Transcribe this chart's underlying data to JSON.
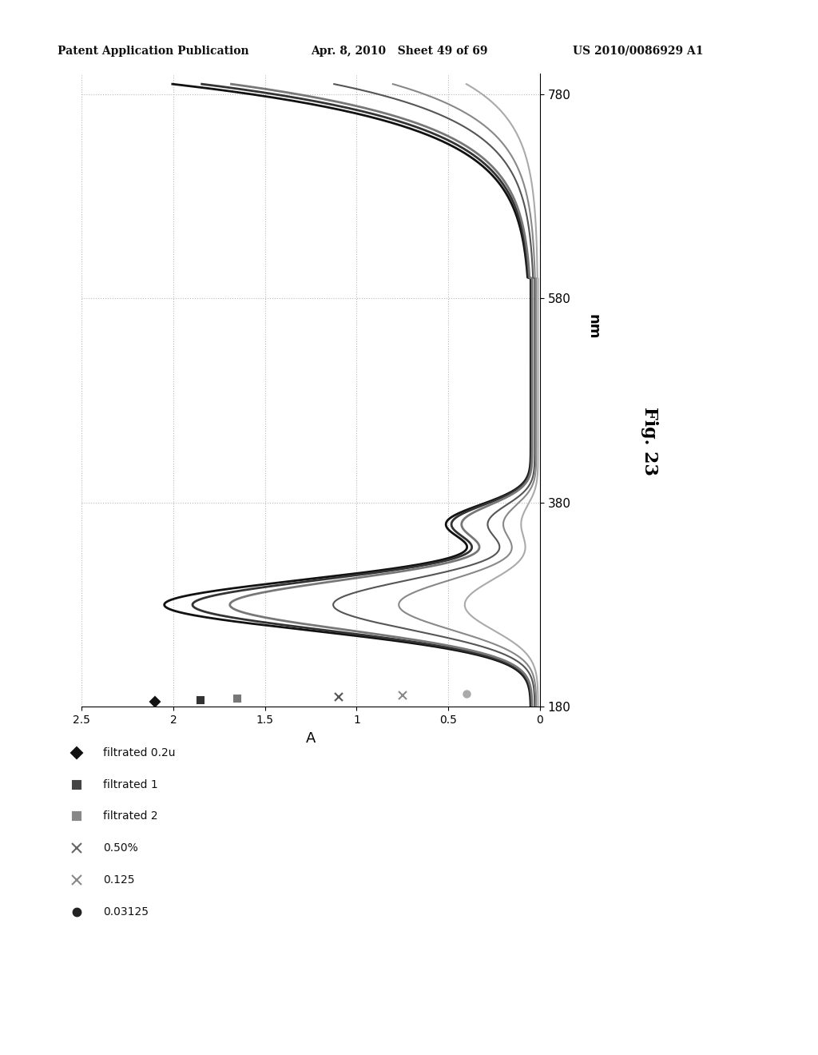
{
  "header_left": "Patent Application Publication",
  "header_mid": "Apr. 8, 2010   Sheet 49 of 69",
  "header_right": "US 2010/0086929 A1",
  "fig_label": "Fig. 23",
  "nm_label": "nm",
  "a_label": "A",
  "x_ticks": [
    0,
    0.5,
    1.0,
    1.5,
    2.0,
    2.5
  ],
  "x_tick_labels": [
    "0",
    "0.5",
    "1",
    "1.5",
    "2",
    "2.5"
  ],
  "y_ticks": [
    180,
    380,
    580,
    780
  ],
  "y_tick_labels": [
    "180",
    "380",
    "580",
    "780"
  ],
  "xlim": [
    2.5,
    0
  ],
  "ylim": [
    180,
    800
  ],
  "legend_entries": [
    "filtrated 0.2u",
    "filtrated 1",
    "filtrated 2",
    "0.50%",
    "0.125",
    "0.03125"
  ],
  "legend_markers": [
    "D",
    "s",
    "s",
    "x",
    "x",
    "o"
  ],
  "legend_marker_colors": [
    "#111111",
    "#444444",
    "#888888",
    "#666666",
    "#888888",
    "#222222"
  ],
  "bg_color": "#ffffff",
  "plot_bg_color": "#ffffff",
  "grid_color": "#bbbbbb",
  "line_colors": [
    "#111111",
    "#333333",
    "#777777",
    "#555555",
    "#888888",
    "#aaaaaa"
  ],
  "line_widths": [
    2.0,
    2.0,
    2.0,
    1.5,
    1.5,
    1.5
  ],
  "marker_scatter_nm": 185,
  "scatter_A_values": [
    2.1,
    1.85,
    1.65,
    1.1,
    0.75,
    0.4
  ]
}
